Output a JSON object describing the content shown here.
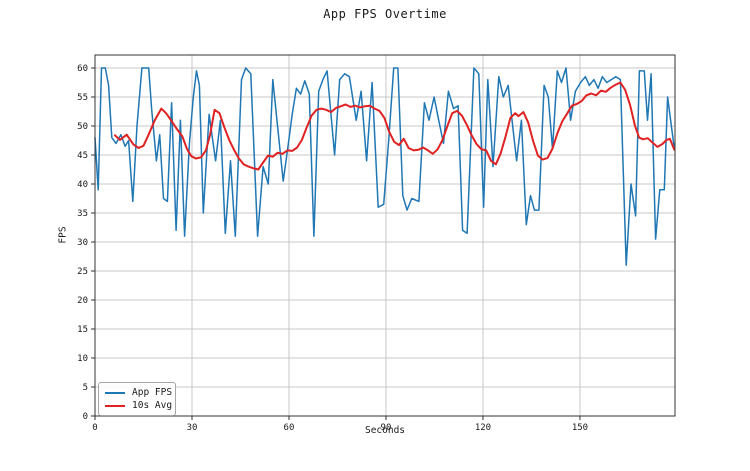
{
  "chart_data": {
    "type": "line",
    "title": "App FPS Overtime",
    "xlabel": "Seconds",
    "ylabel": "FPS",
    "xlim": [
      0,
      179.4
    ],
    "ylim": [
      0,
      62.24
    ],
    "xticks": [
      0,
      30,
      60,
      90,
      120,
      150
    ],
    "yticks": [
      0,
      5,
      10,
      15,
      20,
      25,
      30,
      35,
      40,
      45,
      50,
      55,
      60
    ],
    "grid": true,
    "grid_color": "#c8c8c8",
    "frame_color": "#333333",
    "text_color": "#1a1a1a",
    "legend_position": "lower left",
    "legend_labels": [
      "App FPS",
      "10s Avg"
    ],
    "series": [
      {
        "name": "App FPS",
        "color": "#1f77b4",
        "width": 1.5,
        "points": [
          [
            0,
            48
          ],
          [
            1,
            39
          ],
          [
            2,
            60
          ],
          [
            3.2,
            60
          ],
          [
            4.2,
            57
          ],
          [
            5.2,
            48
          ],
          [
            6.5,
            47
          ],
          [
            8,
            48.5
          ],
          [
            9.3,
            46.5
          ],
          [
            10.4,
            47.5
          ],
          [
            11.7,
            37
          ],
          [
            13,
            50
          ],
          [
            14.5,
            60
          ],
          [
            16.6,
            60
          ],
          [
            17.5,
            53
          ],
          [
            19,
            44
          ],
          [
            20,
            48.5
          ],
          [
            21.2,
            37.5
          ],
          [
            22.4,
            37
          ],
          [
            23.7,
            54
          ],
          [
            25.1,
            32
          ],
          [
            26.4,
            51
          ],
          [
            27.7,
            31
          ],
          [
            29.2,
            47
          ],
          [
            30.4,
            55
          ],
          [
            31.4,
            59.5
          ],
          [
            32.3,
            57
          ],
          [
            33.5,
            35
          ],
          [
            35.3,
            52
          ],
          [
            37.3,
            44
          ],
          [
            38.8,
            51
          ],
          [
            40.3,
            31.5
          ],
          [
            41.9,
            44
          ],
          [
            43.4,
            31
          ],
          [
            45.3,
            58
          ],
          [
            46.6,
            60
          ],
          [
            48.2,
            59
          ],
          [
            50.3,
            31
          ],
          [
            52,
            43
          ],
          [
            53.6,
            40
          ],
          [
            55,
            58
          ],
          [
            58.2,
            40.5
          ],
          [
            59.7,
            46.5
          ],
          [
            61,
            52
          ],
          [
            62.3,
            56.5
          ],
          [
            63.6,
            55.5
          ],
          [
            64.9,
            57.8
          ],
          [
            66.3,
            55.5
          ],
          [
            67.7,
            31
          ],
          [
            69.2,
            56
          ],
          [
            70.5,
            58
          ],
          [
            71.8,
            59.5
          ],
          [
            74.1,
            45
          ],
          [
            75.7,
            58
          ],
          [
            77.2,
            59
          ],
          [
            78.7,
            58.5
          ],
          [
            80.8,
            51
          ],
          [
            82.3,
            56
          ],
          [
            84,
            44
          ],
          [
            85.7,
            57.5
          ],
          [
            87.6,
            36
          ],
          [
            89.3,
            36.5
          ],
          [
            90.9,
            48
          ],
          [
            92.4,
            60
          ],
          [
            93.7,
            60
          ],
          [
            95.2,
            38
          ],
          [
            96.5,
            35.5
          ],
          [
            98,
            37.5
          ],
          [
            100.2,
            37
          ],
          [
            101.9,
            54
          ],
          [
            103.3,
            51
          ],
          [
            104.9,
            55
          ],
          [
            106.3,
            51
          ],
          [
            107.8,
            47
          ],
          [
            109.3,
            56
          ],
          [
            110.9,
            53
          ],
          [
            112.3,
            53.5
          ],
          [
            113.7,
            32
          ],
          [
            115.1,
            31.5
          ],
          [
            117.2,
            60
          ],
          [
            118.7,
            59
          ],
          [
            120.2,
            36
          ],
          [
            121.5,
            58
          ],
          [
            123.1,
            43
          ],
          [
            124.9,
            58.5
          ],
          [
            126.3,
            55
          ],
          [
            127.8,
            57
          ],
          [
            129.3,
            49.5
          ],
          [
            130.4,
            44
          ],
          [
            131.9,
            51
          ],
          [
            133.4,
            33
          ],
          [
            134.7,
            38
          ],
          [
            135.9,
            35.5
          ],
          [
            137.3,
            35.5
          ],
          [
            138.9,
            57
          ],
          [
            140.2,
            55
          ],
          [
            141.5,
            46
          ],
          [
            143,
            59.5
          ],
          [
            144.3,
            57.5
          ],
          [
            145.7,
            60
          ],
          [
            147.1,
            51
          ],
          [
            148.6,
            56
          ],
          [
            150.2,
            57.5
          ],
          [
            151.7,
            58.5
          ],
          [
            152.9,
            57
          ],
          [
            154.3,
            58
          ],
          [
            155.6,
            56.5
          ],
          [
            156.9,
            58.5
          ],
          [
            158.3,
            57.5
          ],
          [
            159.7,
            58
          ],
          [
            161.1,
            58.5
          ],
          [
            162.5,
            58
          ],
          [
            164.3,
            26
          ],
          [
            165.8,
            40
          ],
          [
            167.2,
            34.5
          ],
          [
            168.4,
            59.5
          ],
          [
            169.9,
            59.5
          ],
          [
            170.9,
            51
          ],
          [
            172,
            59
          ],
          [
            173.4,
            30.5
          ],
          [
            174.7,
            39
          ],
          [
            176.1,
            39
          ],
          [
            177.1,
            55
          ],
          [
            179.2,
            46
          ]
        ]
      },
      {
        "name": "10s Avg",
        "color": "#e02222",
        "width": 2,
        "points": [
          [
            6.2,
            48.4
          ],
          [
            7.7,
            47.6
          ],
          [
            9.8,
            48.5
          ],
          [
            11.9,
            46.8
          ],
          [
            13.5,
            46.2
          ],
          [
            15,
            46.6
          ],
          [
            16.5,
            48.4
          ],
          [
            18.5,
            51
          ],
          [
            20.5,
            53
          ],
          [
            22,
            52.2
          ],
          [
            23.5,
            51
          ],
          [
            25.3,
            49.5
          ],
          [
            27,
            48.2
          ],
          [
            28.5,
            46
          ],
          [
            29.8,
            44.8
          ],
          [
            31.2,
            44.4
          ],
          [
            32.8,
            44.6
          ],
          [
            34.3,
            45.8
          ],
          [
            35.6,
            48.5
          ],
          [
            37,
            52.8
          ],
          [
            38.5,
            52.2
          ],
          [
            40,
            49.8
          ],
          [
            41.5,
            47.6
          ],
          [
            43,
            45.9
          ],
          [
            44.5,
            44.4
          ],
          [
            46,
            43.4
          ],
          [
            47.5,
            43
          ],
          [
            49,
            42.7
          ],
          [
            50.5,
            42.5
          ],
          [
            52,
            43.7
          ],
          [
            53.5,
            44.9
          ],
          [
            55,
            44.7
          ],
          [
            56.5,
            45.4
          ],
          [
            58,
            45.2
          ],
          [
            59.5,
            45.8
          ],
          [
            61,
            45.7
          ],
          [
            62.5,
            46.3
          ],
          [
            64,
            47.6
          ],
          [
            65.5,
            49.8
          ],
          [
            67,
            51.8
          ],
          [
            68.5,
            52.8
          ],
          [
            70,
            53
          ],
          [
            71.5,
            52.8
          ],
          [
            73,
            52.4
          ],
          [
            74.5,
            53.1
          ],
          [
            76,
            53.4
          ],
          [
            77.5,
            53.7
          ],
          [
            79,
            53.3
          ],
          [
            80.5,
            53.5
          ],
          [
            82,
            53.2
          ],
          [
            83.5,
            53.4
          ],
          [
            85,
            53.5
          ],
          [
            86.5,
            53
          ],
          [
            88,
            52.6
          ],
          [
            89.5,
            51.4
          ],
          [
            91,
            49
          ],
          [
            92.5,
            47.3
          ],
          [
            94,
            46.7
          ],
          [
            95.5,
            47.8
          ],
          [
            97,
            46.2
          ],
          [
            98.5,
            45.8
          ],
          [
            100,
            45.9
          ],
          [
            101.5,
            46.3
          ],
          [
            103,
            45.8
          ],
          [
            104.5,
            45.2
          ],
          [
            106,
            46
          ],
          [
            107.5,
            47.6
          ],
          [
            109,
            50
          ],
          [
            110.5,
            52.2
          ],
          [
            112,
            52.6
          ],
          [
            113.5,
            51.8
          ],
          [
            115,
            50.2
          ],
          [
            116.5,
            48.4
          ],
          [
            118,
            46.9
          ],
          [
            119.5,
            46
          ],
          [
            121,
            45.8
          ],
          [
            122.5,
            44
          ],
          [
            124,
            43.4
          ],
          [
            125.5,
            45.3
          ],
          [
            127,
            48.2
          ],
          [
            128.5,
            51.4
          ],
          [
            130,
            52.2
          ],
          [
            131,
            51.7
          ],
          [
            132.5,
            52.4
          ],
          [
            134,
            50.6
          ],
          [
            135.5,
            47.4
          ],
          [
            137,
            44.9
          ],
          [
            138.5,
            44.2
          ],
          [
            140,
            44.5
          ],
          [
            141.5,
            46.1
          ],
          [
            143,
            48.7
          ],
          [
            144.5,
            50.8
          ],
          [
            146,
            52.1
          ],
          [
            147.5,
            53.5
          ],
          [
            149,
            53.8
          ],
          [
            150.5,
            54.3
          ],
          [
            152,
            55.3
          ],
          [
            153.5,
            55.6
          ],
          [
            155,
            55.3
          ],
          [
            156.5,
            56.1
          ],
          [
            158,
            55.9
          ],
          [
            159.5,
            56.6
          ],
          [
            161,
            57.1
          ],
          [
            162.5,
            57.5
          ],
          [
            164,
            56.2
          ],
          [
            165.5,
            53.6
          ],
          [
            167,
            50.1
          ],
          [
            168.3,
            48
          ],
          [
            169.5,
            47.7
          ],
          [
            171,
            47.9
          ],
          [
            172.5,
            47.1
          ],
          [
            174,
            46.4
          ],
          [
            175.5,
            46.9
          ],
          [
            176.8,
            47.6
          ],
          [
            177.8,
            47.8
          ],
          [
            179.2,
            45.9
          ]
        ]
      }
    ]
  }
}
